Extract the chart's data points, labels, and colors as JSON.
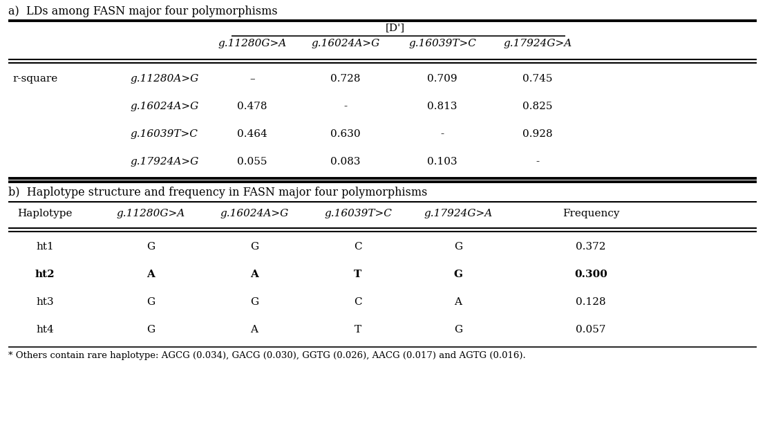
{
  "title_a": "a)  LDs among FASN major four polymorphisms",
  "title_b": "b)  Haplotype structure and frequency in FASN major four polymorphisms",
  "footnote": "* Others contain rare haplotype: AGCG (0.034), GACG (0.030), GGTG (0.026), AACG (0.017) and AGTG (0.016).",
  "dp_label": "[D']",
  "col_headers_a": [
    "g.11280G>A",
    "g.16024A>G",
    "g.16039T>C",
    "g.17924G>A"
  ],
  "row_label_left_a": "r-square",
  "row_labels_a": [
    "g.11280A>G",
    "g.16024A>G",
    "g.16039T>C",
    "g.17924A>G"
  ],
  "data_a": [
    [
      "–",
      "0.728",
      "0.709",
      "0.745"
    ],
    [
      "0.478",
      "-",
      "0.813",
      "0.825"
    ],
    [
      "0.464",
      "0.630",
      "-",
      "0.928"
    ],
    [
      "0.055",
      "0.083",
      "0.103",
      "-"
    ]
  ],
  "col_headers_b": [
    "Haplotype",
    "g.11280G>A",
    "g.16024A>G",
    "g.16039T>C",
    "g.17924G>A",
    "Frequency"
  ],
  "data_b": [
    [
      "ht1",
      "G",
      "G",
      "C",
      "G",
      "0.372"
    ],
    [
      "ht2",
      "A",
      "A",
      "T",
      "G",
      "0.300"
    ],
    [
      "ht3",
      "G",
      "G",
      "C",
      "A",
      "0.128"
    ],
    [
      "ht4",
      "G",
      "A",
      "T",
      "G",
      "0.057"
    ]
  ],
  "bold_row_b": 1,
  "bg_color": "#ffffff",
  "text_color": "#000000",
  "font_size_title": 11.5,
  "font_size_body": 11.0,
  "font_size_footnote": 9.5
}
